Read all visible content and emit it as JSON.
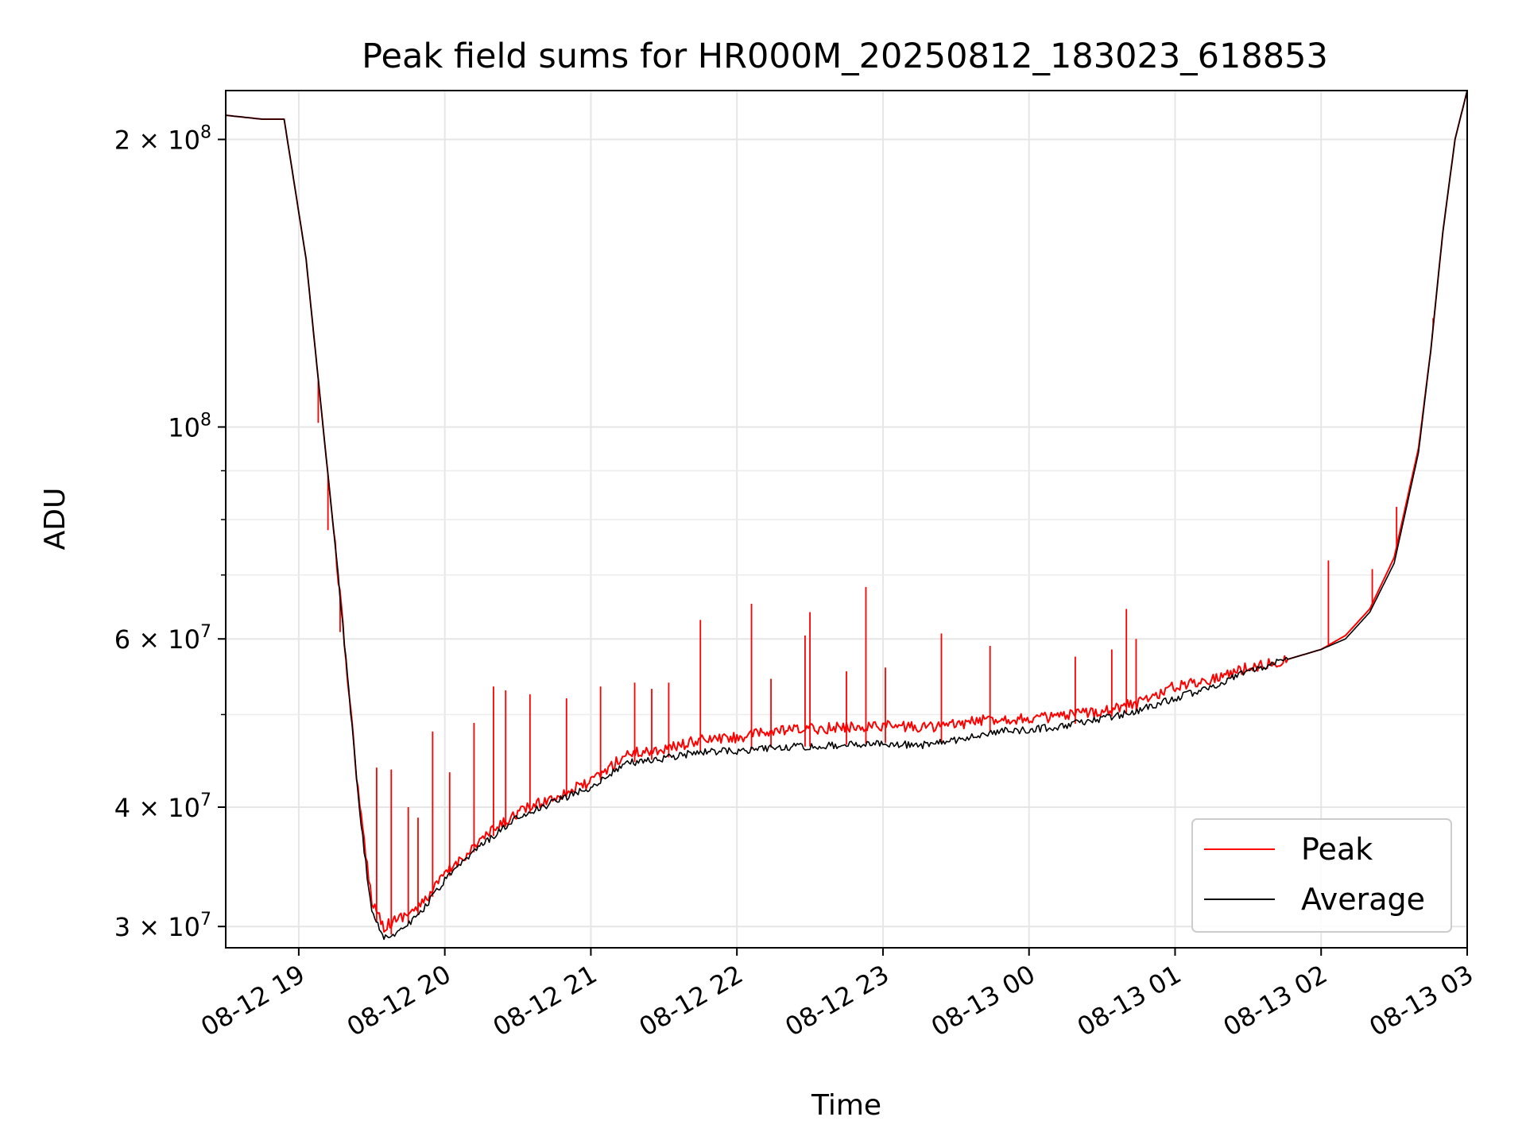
{
  "chart_data": {
    "type": "line",
    "title": "Peak field sums for HR000M_20250812_183023_618853",
    "xlabel": "Time",
    "ylabel": "ADU",
    "y_scale": "log",
    "x_range": [
      "2025-08-12 18:30",
      "2025-08-13 03:00"
    ],
    "ylim": [
      28500000,
      225000000
    ],
    "grid": true,
    "legend_position": "lower right",
    "x_ticks": [
      "08-12 19",
      "08-12 20",
      "08-12 21",
      "08-12 22",
      "08-12 23",
      "08-13 00",
      "08-13 01",
      "08-13 02",
      "08-13 03"
    ],
    "y_major_ticks": [
      {
        "value": 30000000,
        "mantissa": "3",
        "exponent": "7"
      },
      {
        "value": 40000000,
        "mantissa": "4",
        "exponent": "7"
      },
      {
        "value": 60000000,
        "mantissa": "6",
        "exponent": "7"
      },
      {
        "value": 100000000,
        "mantissa": "",
        "exponent": "8"
      },
      {
        "value": 200000000,
        "mantissa": "2",
        "exponent": "8"
      }
    ],
    "y_minor_ticks": [
      50000000,
      70000000,
      80000000,
      90000000
    ],
    "series": [
      {
        "name": "Peak",
        "color": "#ff0000",
        "x": [
          "2025-08-12 18:30",
          "2025-08-12 18:45",
          "2025-08-12 18:54",
          "2025-08-12 19:03",
          "2025-08-12 19:10",
          "2025-08-12 19:15",
          "2025-08-12 19:20",
          "2025-08-12 19:25",
          "2025-08-12 19:30",
          "2025-08-12 19:35",
          "2025-08-12 19:40",
          "2025-08-12 19:50",
          "2025-08-12 20:00",
          "2025-08-12 20:15",
          "2025-08-12 20:30",
          "2025-08-12 20:45",
          "2025-08-12 21:00",
          "2025-08-12 21:15",
          "2025-08-12 21:30",
          "2025-08-12 21:45",
          "2025-08-12 22:00",
          "2025-08-12 22:15",
          "2025-08-12 22:30",
          "2025-08-12 22:45",
          "2025-08-12 23:00",
          "2025-08-12 23:15",
          "2025-08-12 23:30",
          "2025-08-12 23:45",
          "2025-08-13 00:00",
          "2025-08-13 00:15",
          "2025-08-13 00:30",
          "2025-08-13 00:45",
          "2025-08-13 01:00",
          "2025-08-13 01:15",
          "2025-08-13 01:30",
          "2025-08-13 01:45",
          "2025-08-13 02:00",
          "2025-08-13 02:10",
          "2025-08-13 02:20",
          "2025-08-13 02:30",
          "2025-08-13 02:40",
          "2025-08-13 02:45",
          "2025-08-13 02:50",
          "2025-08-13 02:55",
          "2025-08-13 03:00"
        ],
        "values": [
          212000000,
          210000000,
          210000000,
          150000000,
          100000000,
          75000000,
          55000000,
          40000000,
          32000000,
          30000000,
          30500000,
          31500000,
          34000000,
          37000000,
          39500000,
          41000000,
          42500000,
          45500000,
          46000000,
          47000000,
          47300000,
          48000000,
          48300000,
          48500000,
          48700000,
          48500000,
          48800000,
          49500000,
          49500000,
          49800000,
          50500000,
          51500000,
          53500000,
          54500000,
          56000000,
          57000000,
          58500000,
          60500000,
          64500000,
          73000000,
          95000000,
          120000000,
          160000000,
          200000000,
          225000000
        ]
      },
      {
        "name": "Average",
        "color": "#000000",
        "x": [
          "2025-08-12 18:30",
          "2025-08-12 18:45",
          "2025-08-12 18:54",
          "2025-08-12 19:03",
          "2025-08-12 19:10",
          "2025-08-12 19:15",
          "2025-08-12 19:20",
          "2025-08-12 19:25",
          "2025-08-12 19:30",
          "2025-08-12 19:35",
          "2025-08-12 19:40",
          "2025-08-12 19:50",
          "2025-08-12 20:00",
          "2025-08-12 20:15",
          "2025-08-12 20:30",
          "2025-08-12 20:45",
          "2025-08-12 21:00",
          "2025-08-12 21:15",
          "2025-08-12 21:30",
          "2025-08-12 21:45",
          "2025-08-12 22:00",
          "2025-08-12 22:15",
          "2025-08-12 22:30",
          "2025-08-12 22:45",
          "2025-08-12 23:00",
          "2025-08-12 23:15",
          "2025-08-12 23:30",
          "2025-08-12 23:45",
          "2025-08-13 00:00",
          "2025-08-13 00:15",
          "2025-08-13 00:30",
          "2025-08-13 00:45",
          "2025-08-13 01:00",
          "2025-08-13 01:15",
          "2025-08-13 01:30",
          "2025-08-13 01:45",
          "2025-08-13 02:00",
          "2025-08-13 02:10",
          "2025-08-13 02:20",
          "2025-08-13 02:30",
          "2025-08-13 02:40",
          "2025-08-13 02:45",
          "2025-08-13 02:50",
          "2025-08-13 02:55",
          "2025-08-13 03:00"
        ],
        "values": [
          212000000,
          210000000,
          210000000,
          150000000,
          100000000,
          75000000,
          55000000,
          39500000,
          31000000,
          29300000,
          29500000,
          31000000,
          33500000,
          36500000,
          39000000,
          40500000,
          42000000,
          44500000,
          45000000,
          45700000,
          45800000,
          46200000,
          46300000,
          46500000,
          46700000,
          46400000,
          47000000,
          48000000,
          48200000,
          48700000,
          49500000,
          50500000,
          52000000,
          53500000,
          55500000,
          57000000,
          58500000,
          60000000,
          64000000,
          72000000,
          94000000,
          120000000,
          160000000,
          200000000,
          225000000
        ]
      }
    ],
    "peak_spikes": [
      {
        "x": "2025-08-12 19:08",
        "value": 101000000
      },
      {
        "x": "2025-08-12 19:12",
        "value": 78000000
      },
      {
        "x": "2025-08-12 19:17",
        "value": 61000000
      },
      {
        "x": "2025-08-12 19:32",
        "value": 44000000
      },
      {
        "x": "2025-08-12 19:38",
        "value": 43800000
      },
      {
        "x": "2025-08-12 19:45",
        "value": 40000000
      },
      {
        "x": "2025-08-12 19:49",
        "value": 39000000
      },
      {
        "x": "2025-08-12 19:55",
        "value": 48000000
      },
      {
        "x": "2025-08-12 20:02",
        "value": 43500000
      },
      {
        "x": "2025-08-12 20:12",
        "value": 49000000
      },
      {
        "x": "2025-08-12 20:20",
        "value": 53500000
      },
      {
        "x": "2025-08-12 20:25",
        "value": 53000000
      },
      {
        "x": "2025-08-12 20:35",
        "value": 52500000
      },
      {
        "x": "2025-08-12 20:50",
        "value": 52000000
      },
      {
        "x": "2025-08-12 21:04",
        "value": 53500000
      },
      {
        "x": "2025-08-12 21:18",
        "value": 54000000
      },
      {
        "x": "2025-08-12 21:25",
        "value": 53200000
      },
      {
        "x": "2025-08-12 21:32",
        "value": 54000000
      },
      {
        "x": "2025-08-12 21:45",
        "value": 62800000
      },
      {
        "x": "2025-08-12 22:06",
        "value": 65300000
      },
      {
        "x": "2025-08-12 22:14",
        "value": 54500000
      },
      {
        "x": "2025-08-12 22:28",
        "value": 60500000
      },
      {
        "x": "2025-08-12 22:30",
        "value": 64000000
      },
      {
        "x": "2025-08-12 22:45",
        "value": 55500000
      },
      {
        "x": "2025-08-12 22:53",
        "value": 68000000
      },
      {
        "x": "2025-08-12 23:01",
        "value": 56000000
      },
      {
        "x": "2025-08-12 23:24",
        "value": 60800000
      },
      {
        "x": "2025-08-12 23:44",
        "value": 59000000
      },
      {
        "x": "2025-08-13 00:19",
        "value": 57500000
      },
      {
        "x": "2025-08-13 00:34",
        "value": 58500000
      },
      {
        "x": "2025-08-13 00:40",
        "value": 64500000
      },
      {
        "x": "2025-08-13 00:44",
        "value": 60000000
      },
      {
        "x": "2025-08-13 02:03",
        "value": 72500000
      },
      {
        "x": "2025-08-13 02:21",
        "value": 71000000
      },
      {
        "x": "2025-08-13 02:31",
        "value": 82500000
      },
      {
        "x": "2025-08-13 02:46",
        "value": 130000000
      }
    ]
  }
}
